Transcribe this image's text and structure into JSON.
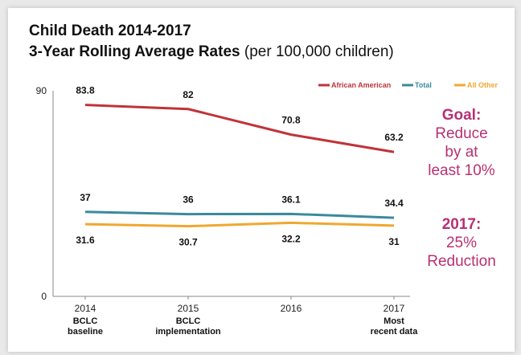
{
  "title_line1": "Child Death 2014-2017",
  "title_line2_bold": "3-Year Rolling Average Rates",
  "title_line2_rest": " (per 100,000 children)",
  "goal": {
    "heading": "Goal:",
    "lines": [
      "Reduce",
      "by at",
      "least 10%"
    ]
  },
  "reduction": {
    "heading": "2017:",
    "lines": [
      "25%",
      "Reduction"
    ]
  },
  "colors": {
    "african_american": "#c0333a",
    "total": "#3a8a9c",
    "all_other": "#f0a830"
  },
  "chart_data": {
    "type": "line",
    "x": [
      "2014",
      "2015",
      "2016",
      "2017"
    ],
    "x_sublabels": [
      [
        "BCLC",
        "baseline"
      ],
      [
        "BCLC",
        "implementation"
      ],
      [
        "",
        ""
      ],
      [
        "Most",
        "recent data"
      ]
    ],
    "ylim": [
      0,
      90
    ],
    "yticks": [
      "0",
      "90"
    ],
    "legend_position": "top-right",
    "series": [
      {
        "name": "African American",
        "color": "#c0333a",
        "values": [
          83.8,
          82,
          70.8,
          63.2
        ],
        "labels": [
          "83.8",
          "82",
          "70.8",
          "63.2"
        ]
      },
      {
        "name": "Total",
        "color": "#3a8a9c",
        "values": [
          37,
          36,
          36.1,
          34.4
        ],
        "labels": [
          "37",
          "36",
          "36.1",
          "34.4"
        ]
      },
      {
        "name": "All Other",
        "color": "#f0a830",
        "values": [
          31.6,
          30.7,
          32.2,
          31
        ],
        "labels": [
          "31.6",
          "30.7",
          "32.2",
          "31"
        ]
      }
    ]
  }
}
